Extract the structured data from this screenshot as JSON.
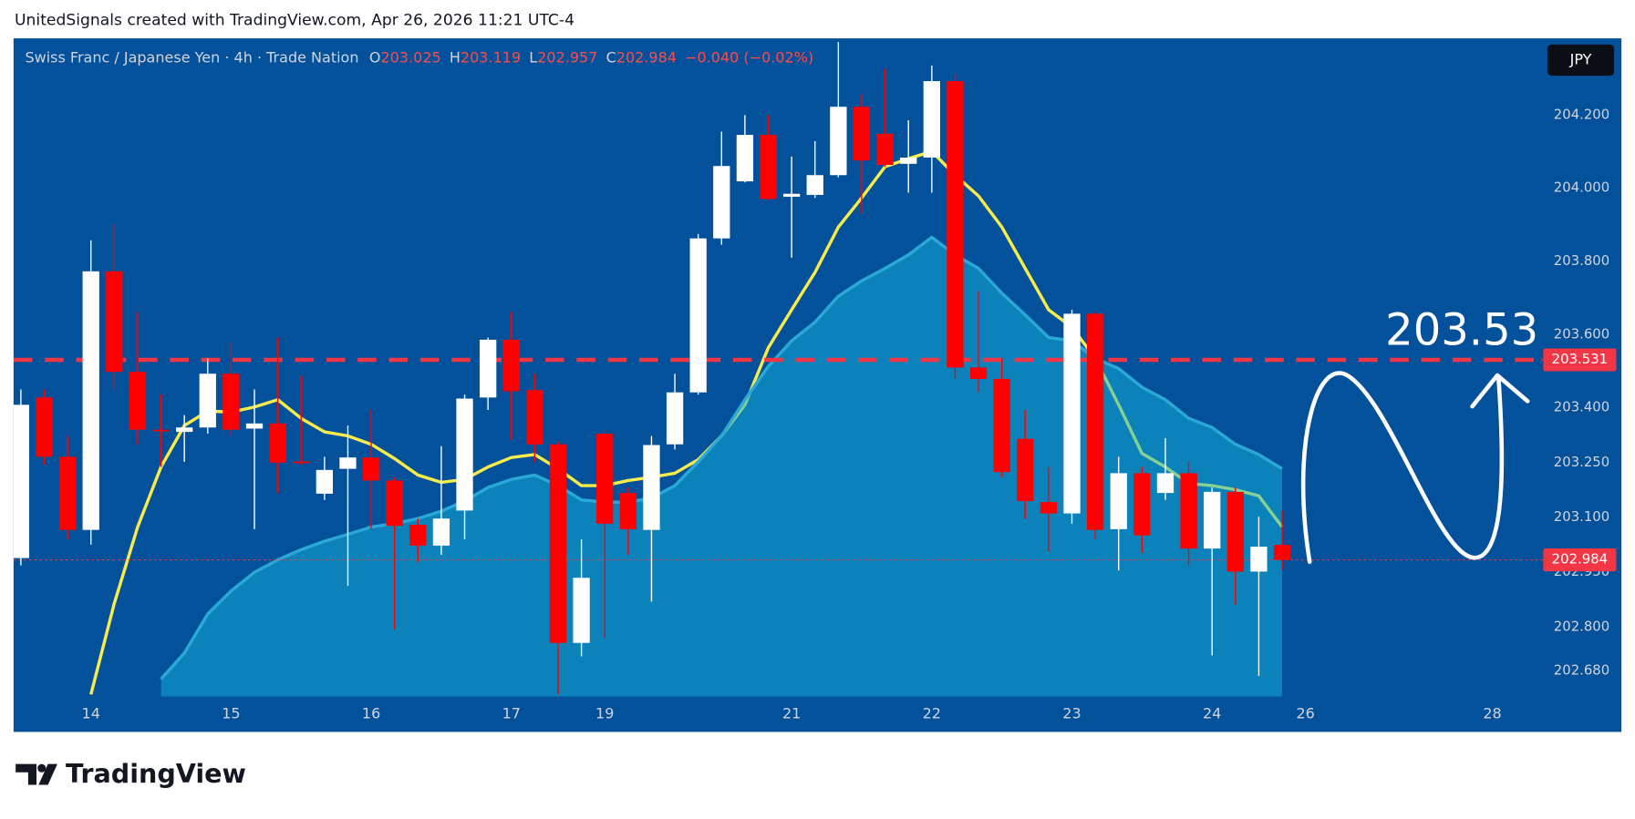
{
  "header": "UnitedSignals created with TradingView.com, Apr 26, 2026 11:21 UTC-4",
  "chart_data": {
    "type": "candlestick",
    "title": "Swiss Franc  / Japanese Yen · 4h · Trade Nation",
    "ohlc_labels": [
      "O",
      "H",
      "L",
      "C"
    ],
    "change": "−0.040 (−0.02%)",
    "currency": "JPY",
    "categories": [
      null,
      null,
      null,
      "14",
      null,
      null,
      null,
      null,
      null,
      "15",
      null,
      null,
      null,
      null,
      null,
      "16",
      null,
      null,
      null,
      null,
      null,
      "17",
      null,
      null,
      null,
      "19",
      null,
      null,
      null,
      null,
      null,
      null,
      null,
      "21",
      null,
      null,
      null,
      null,
      null,
      "22",
      null,
      null,
      null,
      null,
      null,
      "23",
      null,
      null,
      null,
      null,
      null,
      "24",
      null,
      null,
      null,
      "26",
      null,
      null,
      null,
      null,
      null,
      null,
      null,
      "28",
      null
    ],
    "open": [
      202.989,
      203.428,
      203.266,
      203.066,
      203.773,
      203.498,
      203.34,
      203.334,
      203.346,
      203.493,
      203.343,
      203.357,
      203.253,
      203.165,
      203.233,
      203.264,
      203.201,
      203.08,
      203.023,
      203.119,
      203.428,
      203.586,
      203.448,
      203.3,
      202.757,
      203.329,
      203.167,
      203.066,
      203.3,
      203.442,
      203.863,
      204.019,
      204.146,
      203.977,
      203.982,
      204.036,
      204.223,
      204.149,
      204.067,
      204.084,
      204.293,
      203.51,
      203.479,
      203.315,
      203.142,
      203.111,
      203.657,
      203.068,
      203.221,
      203.167,
      203.221,
      203.015,
      203.17,
      202.952,
      203.025,
      null,
      null,
      null,
      null,
      null,
      null,
      null,
      null,
      null,
      null
    ],
    "high": [
      203.45,
      203.45,
      203.323,
      203.858,
      203.903,
      203.662,
      203.436,
      203.38,
      203.535,
      203.578,
      203.45,
      203.592,
      203.487,
      203.266,
      203.351,
      203.394,
      203.21,
      203.097,
      203.295,
      203.436,
      203.592,
      203.662,
      203.493,
      203.309,
      203.04,
      203.337,
      203.182,
      203.323,
      203.493,
      203.875,
      204.155,
      204.2,
      204.2,
      204.087,
      204.129,
      204.4,
      204.257,
      204.327,
      204.186,
      204.336,
      204.313,
      203.719,
      203.535,
      203.394,
      203.238,
      203.668,
      203.662,
      203.266,
      203.238,
      203.317,
      203.252,
      203.182,
      203.182,
      203.102,
      203.119,
      null,
      null,
      null,
      null,
      null,
      null,
      null,
      null,
      null,
      null
    ],
    "low": [
      202.969,
      203.244,
      203.04,
      203.026,
      203.45,
      203.3,
      203.238,
      203.252,
      203.329,
      203.323,
      203.068,
      203.167,
      203.244,
      203.148,
      202.913,
      203.068,
      202.794,
      202.978,
      202.998,
      203.04,
      203.394,
      203.312,
      203.252,
      202.616,
      202.72,
      202.771,
      202.998,
      202.87,
      203.286,
      203.436,
      203.846,
      204.016,
      203.968,
      203.81,
      203.974,
      204.03,
      203.931,
      204.059,
      203.988,
      203.988,
      203.479,
      203.442,
      203.21,
      203.097,
      203.006,
      203.083,
      203.04,
      202.955,
      203.003,
      203.148,
      202.969,
      202.723,
      202.862,
      202.667,
      202.957,
      null,
      null,
      null,
      null,
      null,
      null,
      null,
      null,
      null,
      null
    ],
    "close": [
      203.408,
      203.266,
      203.066,
      203.773,
      203.498,
      203.34,
      203.338,
      203.346,
      203.493,
      203.34,
      203.357,
      203.25,
      203.252,
      203.23,
      203.264,
      203.201,
      203.077,
      203.023,
      203.097,
      203.425,
      203.586,
      203.445,
      203.3,
      202.757,
      202.935,
      203.083,
      203.068,
      203.298,
      203.442,
      203.863,
      204.061,
      204.146,
      203.971,
      203.985,
      204.036,
      204.223,
      204.076,
      204.064,
      204.084,
      204.293,
      203.51,
      203.479,
      203.224,
      203.145,
      203.111,
      203.657,
      203.066,
      203.221,
      203.051,
      203.221,
      203.015,
      203.17,
      202.952,
      203.02,
      202.984,
      null,
      null,
      null,
      null,
      null,
      null,
      null,
      null,
      null,
      null
    ],
    "up_color": "#ffffff",
    "down_color": "#ff0000",
    "lines": [
      {
        "color": "#f7ec4a",
        "values": [
          null,
          null,
          null,
          202.616,
          202.865,
          203.074,
          203.238,
          203.351,
          203.391,
          203.388,
          203.402,
          203.422,
          203.371,
          203.334,
          203.323,
          203.3,
          203.261,
          203.216,
          203.196,
          203.204,
          203.238,
          203.264,
          203.272,
          203.233,
          203.187,
          203.187,
          203.201,
          203.21,
          203.221,
          203.258,
          203.323,
          203.408,
          203.564,
          203.668,
          203.77,
          203.894,
          203.974,
          204.059,
          204.081,
          204.101,
          204.036,
          203.979,
          203.894,
          203.781,
          203.668,
          203.62,
          203.535,
          203.408,
          203.275,
          203.238,
          203.193,
          203.187,
          203.176,
          203.159,
          203.074,
          null,
          null,
          null,
          null,
          null,
          null,
          null,
          null,
          null,
          null
        ]
      },
      {
        "color": "#2aa8d6",
        "fill": "#14b4dc",
        "values": [
          null,
          null,
          null,
          null,
          null,
          null,
          202.658,
          202.729,
          202.836,
          202.899,
          202.95,
          202.984,
          203.012,
          203.035,
          203.054,
          203.074,
          203.083,
          203.097,
          203.117,
          203.145,
          203.182,
          203.204,
          203.216,
          203.187,
          203.148,
          203.142,
          203.142,
          203.153,
          203.187,
          203.252,
          203.323,
          203.422,
          203.513,
          203.583,
          203.634,
          203.705,
          203.747,
          203.781,
          203.818,
          203.866,
          203.818,
          203.781,
          203.713,
          203.654,
          203.592,
          203.583,
          203.535,
          203.507,
          203.456,
          203.422,
          203.371,
          203.346,
          203.3,
          203.272,
          203.233,
          null,
          null,
          null,
          null,
          null,
          null,
          null,
          null,
          null,
          null
        ]
      }
    ],
    "ylim": [
      202.61,
      204.41
    ],
    "yticks": [
      {
        "value": 204.2,
        "label": "204.200"
      },
      {
        "value": 204,
        "label": "204.000"
      },
      {
        "value": 203.8,
        "label": "203.800"
      },
      {
        "value": 203.6,
        "label": "203.600"
      },
      {
        "value": 203.4,
        "label": "203.400"
      },
      {
        "value": 203.25,
        "label": "203.250"
      },
      {
        "value": 203.1,
        "label": "203.100"
      },
      {
        "value": 202.95,
        "label": "202.950"
      },
      {
        "value": 202.8,
        "label": "202.800"
      },
      {
        "value": 202.68,
        "label": "202.680"
      }
    ],
    "grid": false,
    "levels": [
      {
        "value": 203.531,
        "color": "#f23645",
        "style": "dashed"
      },
      {
        "value": 202.984,
        "color": "#f23645",
        "style": "dotted"
      }
    ],
    "annotation": 203.53
  },
  "footer": {
    "logo": "TradingView"
  }
}
